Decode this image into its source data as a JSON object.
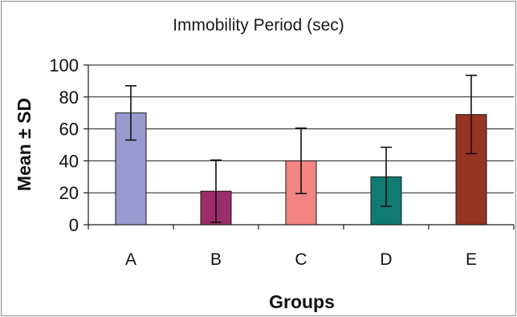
{
  "chart_data": {
    "type": "bar",
    "title": "Immobility Period (sec)",
    "xlabel": "Groups",
    "ylabel": "Mean ± SD",
    "categories": [
      "A",
      "B",
      "C",
      "D",
      "E"
    ],
    "values": [
      70,
      21,
      40,
      30,
      69
    ],
    "errors": [
      17,
      19.5,
      20.5,
      18.5,
      24.5
    ],
    "ylim": [
      0,
      100
    ],
    "yticks": [
      0,
      20,
      40,
      60,
      80,
      100
    ],
    "grid": true,
    "legend": "none",
    "colors": [
      "#9a9ad0",
      "#9b2e6a",
      "#f28482",
      "#117a73",
      "#943421"
    ]
  }
}
